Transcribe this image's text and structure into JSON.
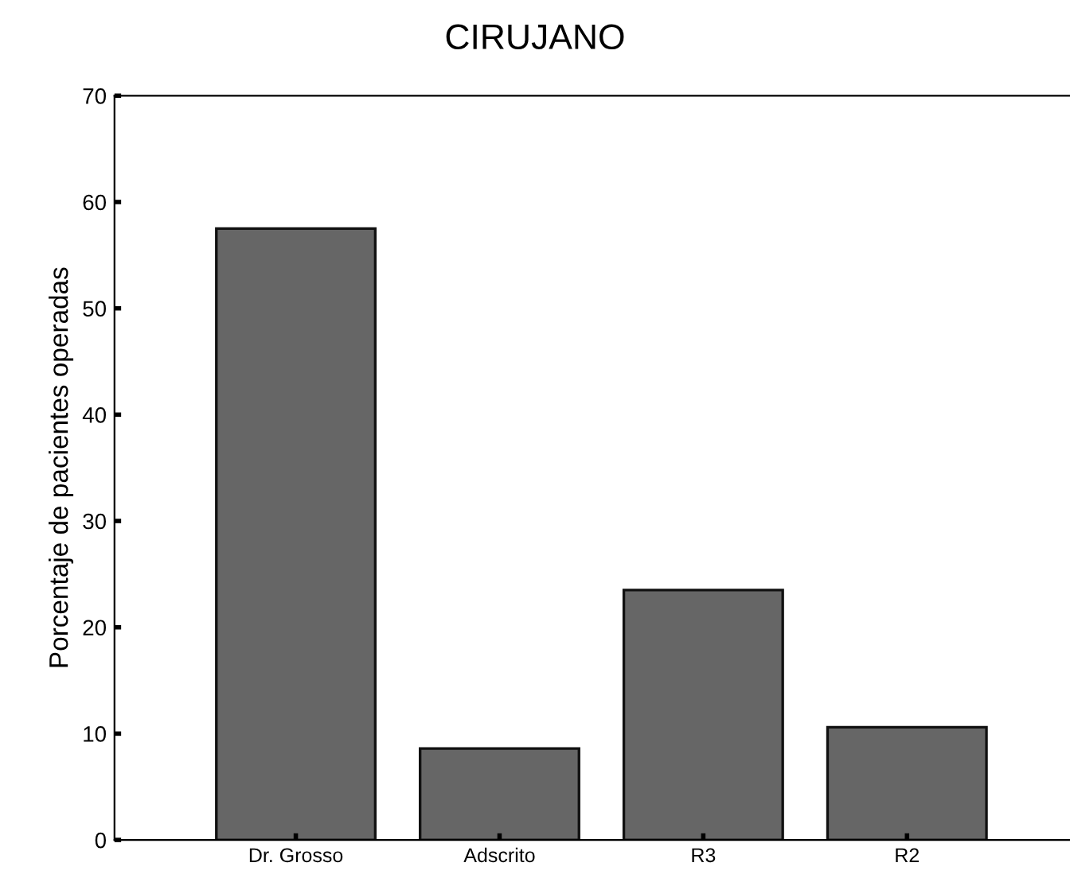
{
  "chart_data": {
    "type": "bar",
    "title": "CIRUJANO",
    "ylabel": "Porcentaje de pacientes operadas",
    "categories": [
      "Dr. Grosso",
      "Adscrito",
      "R3",
      "R2"
    ],
    "values": [
      57.5,
      8.6,
      23.5,
      10.6
    ],
    "color": "#666666",
    "ylim": [
      0,
      70
    ],
    "yticks": [
      0,
      10,
      20,
      30,
      40,
      50,
      60,
      70
    ],
    "grid": false
  }
}
